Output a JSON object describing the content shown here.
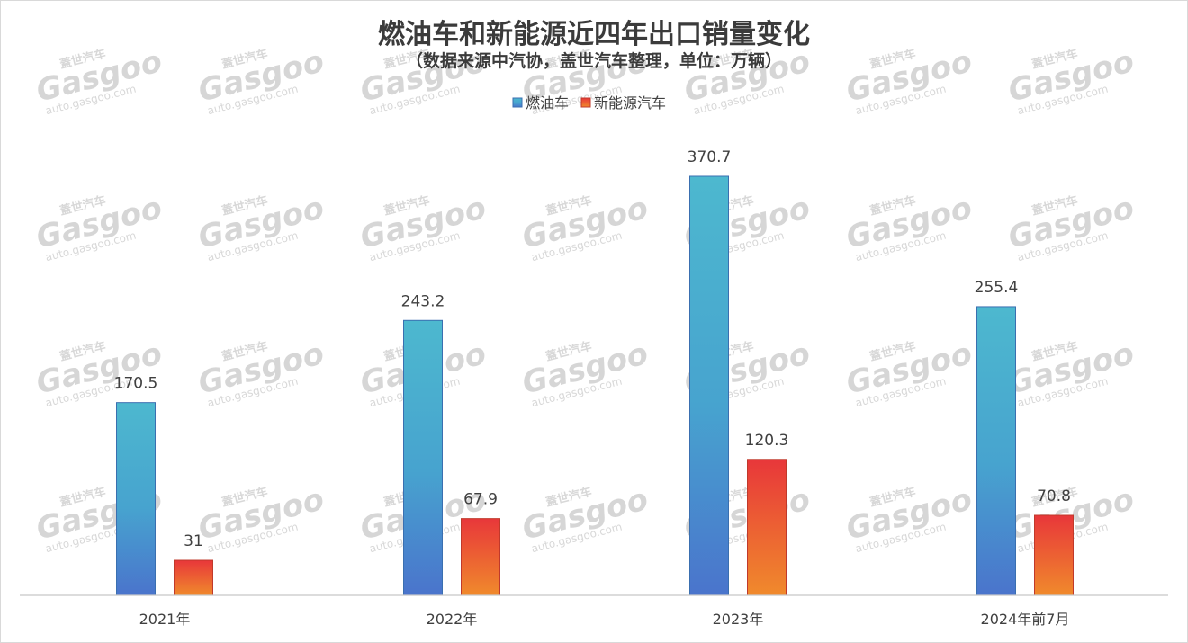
{
  "chart_data": {
    "type": "bar",
    "title": "燃油车和新能源近四年出口销量变化",
    "subtitle": "（数据来源中汽协，盖世汽车整理，单位：万辆）",
    "categories": [
      "2021年",
      "2022年",
      "2023年",
      "2024年前7月"
    ],
    "series": [
      {
        "name": "燃油车",
        "values": [
          170.5,
          243.2,
          370.7,
          255.4
        ]
      },
      {
        "name": "新能源汽车",
        "values": [
          31,
          67.9,
          120.3,
          70.8
        ]
      }
    ],
    "ylim": [
      0,
      370.7
    ],
    "grid": false,
    "legend_position": "top-center",
    "colors": {
      "fuel_top": "#4db8cf",
      "fuel_bottom": "#4a74cc",
      "fuel_stroke": "#3a6fb0",
      "nev_top": "#e8373a",
      "nev_bottom": "#f08a2c",
      "nev_stroke": "#c0392b"
    }
  },
  "watermark": {
    "brand_cn": "蓋世汽车",
    "logo": "Gasgoo",
    "url": "auto.gasgoo.com"
  }
}
